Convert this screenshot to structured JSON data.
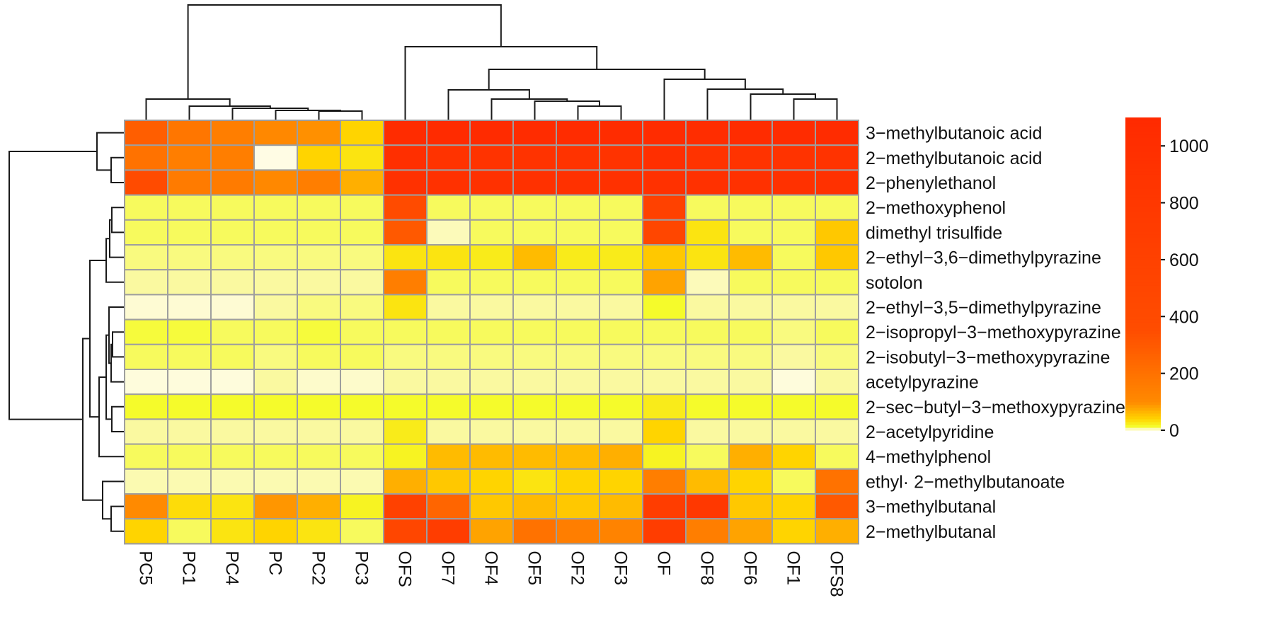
{
  "chart_data": {
    "type": "heatmap",
    "columns": [
      "PC5",
      "PC1",
      "PC4",
      "PC",
      "PC2",
      "PC3",
      "OFS",
      "OF7",
      "OF4",
      "OF5",
      "OF2",
      "OF3",
      "OF",
      "OF8",
      "OF6",
      "OF1",
      "OFS8"
    ],
    "rows": [
      "3−methylbutanoic acid",
      "2−methylbutanoic acid",
      "2−phenylethanol",
      "2−methoxyphenol",
      "dimethyl trisulfide",
      "2−ethyl−3,6−dimethylpyrazine",
      "sotolon",
      "2−ethyl−3,5−dimethylpyrazine",
      "2−isopropyl−3−methoxypyrazine",
      "2−isobutyl−3−methoxypyrazine",
      "acetylpyrazine",
      "2−sec−butyl−3−methoxypyrazine",
      "2−acetylpyridine",
      "4−methylphenol",
      "ethyl· 2−methylbutanoate",
      "3−methylbutanal",
      "2−methylbutanal"
    ],
    "values": [
      [
        280,
        180,
        150,
        110,
        95,
        40,
        1050,
        1080,
        1070,
        1060,
        1050,
        1060,
        1050,
        1040,
        1060,
        1050,
        1060
      ],
      [
        200,
        150,
        150,
        0,
        40,
        30,
        1000,
        900,
        900,
        900,
        900,
        900,
        1000,
        900,
        900,
        900,
        900
      ],
      [
        400,
        160,
        160,
        110,
        150,
        70,
        950,
        950,
        950,
        950,
        950,
        950,
        950,
        950,
        950,
        950,
        950
      ],
      [
        12,
        12,
        12,
        12,
        12,
        12,
        400,
        12,
        12,
        12,
        12,
        12,
        600,
        12,
        12,
        12,
        12
      ],
      [
        12,
        12,
        12,
        12,
        12,
        12,
        300,
        5,
        12,
        12,
        12,
        12,
        500,
        30,
        12,
        12,
        50
      ],
      [
        10,
        10,
        10,
        10,
        10,
        10,
        30,
        30,
        25,
        60,
        25,
        25,
        50,
        30,
        60,
        12,
        50
      ],
      [
        8,
        8,
        8,
        8,
        8,
        8,
        150,
        12,
        12,
        12,
        12,
        12,
        80,
        5,
        12,
        12,
        12
      ],
      [
        2,
        2,
        2,
        8,
        10,
        10,
        30,
        8,
        8,
        8,
        8,
        8,
        15,
        8,
        8,
        8,
        8
      ],
      [
        14,
        14,
        12,
        12,
        14,
        12,
        12,
        12,
        12,
        12,
        12,
        12,
        12,
        12,
        12,
        10,
        12
      ],
      [
        12,
        12,
        12,
        10,
        12,
        12,
        10,
        10,
        10,
        10,
        10,
        10,
        10,
        10,
        10,
        8,
        10
      ],
      [
        1,
        1,
        1,
        8,
        3,
        3,
        8,
        8,
        8,
        8,
        8,
        8,
        8,
        8,
        8,
        1,
        8
      ],
      [
        15,
        15,
        15,
        15,
        15,
        15,
        15,
        15,
        15,
        15,
        15,
        15,
        25,
        15,
        15,
        15,
        15
      ],
      [
        8,
        8,
        8,
        8,
        8,
        8,
        25,
        8,
        8,
        8,
        8,
        8,
        40,
        8,
        8,
        8,
        8
      ],
      [
        12,
        12,
        12,
        12,
        12,
        12,
        20,
        60,
        60,
        60,
        60,
        70,
        20,
        12,
        70,
        40,
        12
      ],
      [
        6,
        6,
        6,
        6,
        6,
        6,
        70,
        50,
        40,
        30,
        40,
        40,
        150,
        60,
        40,
        12,
        200
      ],
      [
        100,
        35,
        30,
        90,
        70,
        20,
        600,
        250,
        50,
        60,
        50,
        60,
        700,
        800,
        50,
        40,
        300
      ],
      [
        40,
        12,
        30,
        40,
        30,
        12,
        500,
        700,
        80,
        200,
        150,
        130,
        700,
        150,
        80,
        40,
        70
      ]
    ],
    "colorbar": {
      "min": 0,
      "max": 1100,
      "ticks": [
        0,
        200,
        400,
        600,
        800,
        1000
      ],
      "tick_labels": [
        "0",
        "200",
        "400",
        "600",
        "800",
        "1000"
      ]
    },
    "colors": {
      "low": "#fffce4",
      "mid_yellow": "#f5fb2b",
      "gold": "#ffd400",
      "orange": "#ff8a00",
      "red": "#ff2a00",
      "grid": "#9e9e9e"
    }
  }
}
